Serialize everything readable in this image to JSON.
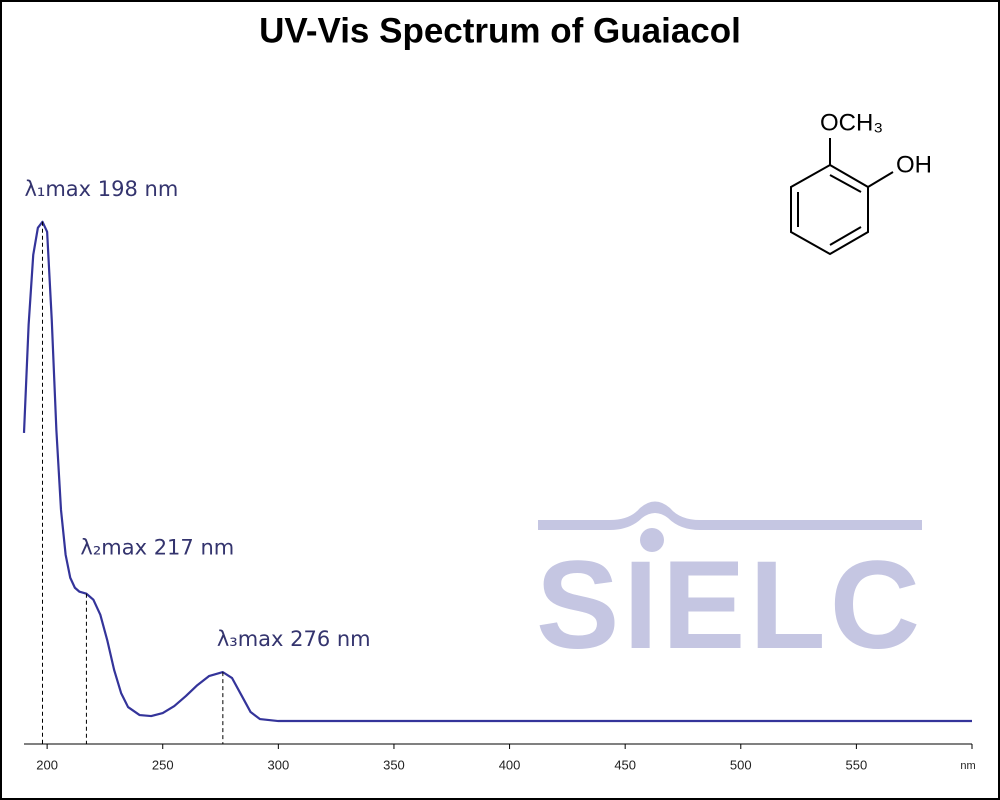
{
  "chart_data": {
    "type": "line",
    "title": "UV-Vis Spectrum of Guaiacol",
    "xlabel": "nm",
    "x": [
      190,
      192,
      194,
      196,
      198,
      200,
      202,
      204,
      206,
      208,
      210,
      212,
      214,
      217,
      220,
      223,
      226,
      229,
      232,
      235,
      240,
      245,
      250,
      255,
      260,
      265,
      270,
      276,
      280,
      284,
      288,
      292,
      300,
      350,
      400,
      450,
      500,
      550,
      600
    ],
    "series": [
      {
        "color": "#34349a",
        "values": [
          0.623,
          0.84,
          0.98,
          1.034,
          1.046,
          1.026,
          0.85,
          0.629,
          0.469,
          0.379,
          0.333,
          0.313,
          0.305,
          0.301,
          0.289,
          0.259,
          0.208,
          0.148,
          0.102,
          0.074,
          0.058,
          0.056,
          0.062,
          0.076,
          0.096,
          0.118,
          0.136,
          0.144,
          0.132,
          0.098,
          0.064,
          0.05,
          0.046,
          0.046,
          0.046,
          0.046,
          0.046,
          0.046,
          0.046
        ]
      }
    ],
    "xlim": [
      190,
      600
    ],
    "ylim": [
      0,
      1.3
    ],
    "xticks": [
      200,
      250,
      300,
      350,
      400,
      450,
      500,
      550
    ],
    "annotations": [
      {
        "text": "λ₁max  198 nm",
        "x": 198
      },
      {
        "text": "λ₂max  217 nm",
        "x": 217
      },
      {
        "text": "λ₃max  276 nm",
        "x": 276
      }
    ],
    "structure": {
      "top": "OCH₃",
      "right": "OH"
    },
    "watermark": "SIELC"
  }
}
